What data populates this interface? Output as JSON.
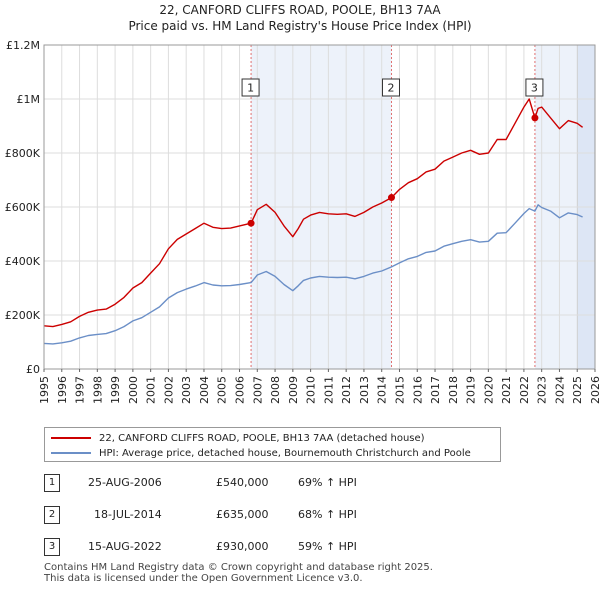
{
  "title": {
    "line1": "22, CANFORD CLIFFS ROAD, POOLE, BH13 7AA",
    "line2": "Price paid vs. HM Land Registry's House Price Index (HPI)"
  },
  "chart_data": {
    "type": "line",
    "title": "22, CANFORD CLIFFS ROAD, POOLE, BH13 7AA — Price paid vs. HM Land Registry's House Price Index (HPI)",
    "xlim": [
      1995,
      2026
    ],
    "ylim": [
      0,
      1200000
    ],
    "y_ticks": [
      {
        "value": 0,
        "label": "£0"
      },
      {
        "value": 200000,
        "label": "£200K"
      },
      {
        "value": 400000,
        "label": "£400K"
      },
      {
        "value": 600000,
        "label": "£600K"
      },
      {
        "value": 800000,
        "label": "£800K"
      },
      {
        "value": 1000000,
        "label": "£1M"
      },
      {
        "value": 1200000,
        "label": "£1.2M"
      }
    ],
    "x_ticks": [
      "1995",
      "1996",
      "1997",
      "1998",
      "1999",
      "2000",
      "2001",
      "2002",
      "2003",
      "2004",
      "2005",
      "2006",
      "2007",
      "2008",
      "2009",
      "2010",
      "2011",
      "2012",
      "2013",
      "2014",
      "2015",
      "2016",
      "2017",
      "2018",
      "2019",
      "2020",
      "2021",
      "2022",
      "2023",
      "2024",
      "2025",
      "2026"
    ],
    "grid": true,
    "colors": {
      "property": "#cc0000",
      "hpi": "#6b8fc7",
      "sale_marker": "#cc0000",
      "vline": "#e07070",
      "shade": "#dde6f5"
    },
    "series": [
      {
        "name": "22, CANFORD CLIFFS ROAD, POOLE, BH13 7AA (detached house)",
        "x": [
          1995.0,
          1995.5,
          1996.0,
          1996.5,
          1997.0,
          1997.5,
          1998.0,
          1998.5,
          1999.0,
          1999.5,
          2000.0,
          2000.5,
          2001.0,
          2001.5,
          2002.0,
          2002.5,
          2003.0,
          2003.5,
          2004.0,
          2004.5,
          2005.0,
          2005.5,
          2006.0,
          2006.65,
          2007.0,
          2007.5,
          2008.0,
          2008.5,
          2009.0,
          2009.3,
          2009.6,
          2010.0,
          2010.5,
          2011.0,
          2011.5,
          2012.0,
          2012.5,
          2013.0,
          2013.5,
          2014.0,
          2014.55,
          2015.0,
          2015.5,
          2016.0,
          2016.5,
          2017.0,
          2017.5,
          2018.0,
          2018.5,
          2019.0,
          2019.5,
          2020.0,
          2020.5,
          2021.0,
          2021.5,
          2022.0,
          2022.3,
          2022.62,
          2022.8,
          2023.0,
          2023.5,
          2024.0,
          2024.5,
          2025.0,
          2025.3
        ],
        "values": [
          160000,
          157000,
          165000,
          175000,
          195000,
          210000,
          218000,
          222000,
          240000,
          265000,
          300000,
          320000,
          355000,
          390000,
          445000,
          480000,
          500000,
          520000,
          540000,
          525000,
          520000,
          522000,
          530000,
          540000,
          590000,
          610000,
          580000,
          530000,
          490000,
          520000,
          555000,
          570000,
          580000,
          575000,
          573000,
          575000,
          565000,
          580000,
          600000,
          615000,
          635000,
          665000,
          690000,
          705000,
          730000,
          740000,
          770000,
          785000,
          800000,
          810000,
          795000,
          800000,
          850000,
          850000,
          910000,
          970000,
          1000000,
          930000,
          965000,
          970000,
          930000,
          890000,
          920000,
          910000,
          895000
        ]
      },
      {
        "name": "HPI: Average price, detached house, Bournemouth Christchurch and Poole",
        "x": [
          1995.0,
          1995.5,
          1996.0,
          1996.5,
          1997.0,
          1997.5,
          1998.0,
          1998.5,
          1999.0,
          1999.5,
          2000.0,
          2000.5,
          2001.0,
          2001.5,
          2002.0,
          2002.5,
          2003.0,
          2003.5,
          2004.0,
          2004.5,
          2005.0,
          2005.5,
          2006.0,
          2006.65,
          2007.0,
          2007.5,
          2008.0,
          2008.5,
          2009.0,
          2009.3,
          2009.6,
          2010.0,
          2010.5,
          2011.0,
          2011.5,
          2012.0,
          2012.5,
          2013.0,
          2013.5,
          2014.0,
          2014.55,
          2015.0,
          2015.5,
          2016.0,
          2016.5,
          2017.0,
          2017.5,
          2018.0,
          2018.5,
          2019.0,
          2019.5,
          2020.0,
          2020.5,
          2021.0,
          2021.5,
          2022.0,
          2022.3,
          2022.62,
          2022.8,
          2023.0,
          2023.5,
          2024.0,
          2024.5,
          2025.0,
          2025.3
        ],
        "values": [
          95000,
          93000,
          97000,
          103000,
          115000,
          124000,
          128000,
          131000,
          142000,
          157000,
          178000,
          190000,
          210000,
          230000,
          263000,
          283000,
          296000,
          307000,
          320000,
          311000,
          308000,
          309000,
          313000,
          320000,
          348000,
          361000,
          343000,
          313000,
          290000,
          308000,
          328000,
          337000,
          343000,
          340000,
          339000,
          340000,
          334000,
          343000,
          355000,
          363000,
          378000,
          393000,
          408000,
          417000,
          432000,
          437000,
          455000,
          464000,
          473000,
          479000,
          470000,
          473000,
          503000,
          505000,
          540000,
          576000,
          594000,
          585000,
          608000,
          598000,
          585000,
          560000,
          578000,
          572000,
          563000
        ]
      }
    ],
    "sales": [
      {
        "label": "1",
        "x": 2006.65,
        "value": 540000,
        "date": "25-AUG-2006",
        "price": "£540,000",
        "hpi": "69% ↑ HPI"
      },
      {
        "label": "2",
        "x": 2014.55,
        "value": 635000,
        "date": "18-JUL-2014",
        "price": "£635,000",
        "hpi": "68% ↑ HPI"
      },
      {
        "label": "3",
        "x": 2022.62,
        "value": 930000,
        "date": "15-AUG-2022",
        "price": "£930,000",
        "hpi": "59% ↑ HPI"
      }
    ],
    "shaded_region": [
      2025.0,
      2026.0
    ]
  },
  "legend": {
    "property": "22, CANFORD CLIFFS ROAD, POOLE, BH13 7AA (detached house)",
    "hpi": "HPI: Average price, detached house, Bournemouth Christchurch and Poole"
  },
  "footer": {
    "line1": "Contains HM Land Registry data © Crown copyright and database right 2025.",
    "line2": "This data is licensed under the Open Government Licence v3.0."
  }
}
